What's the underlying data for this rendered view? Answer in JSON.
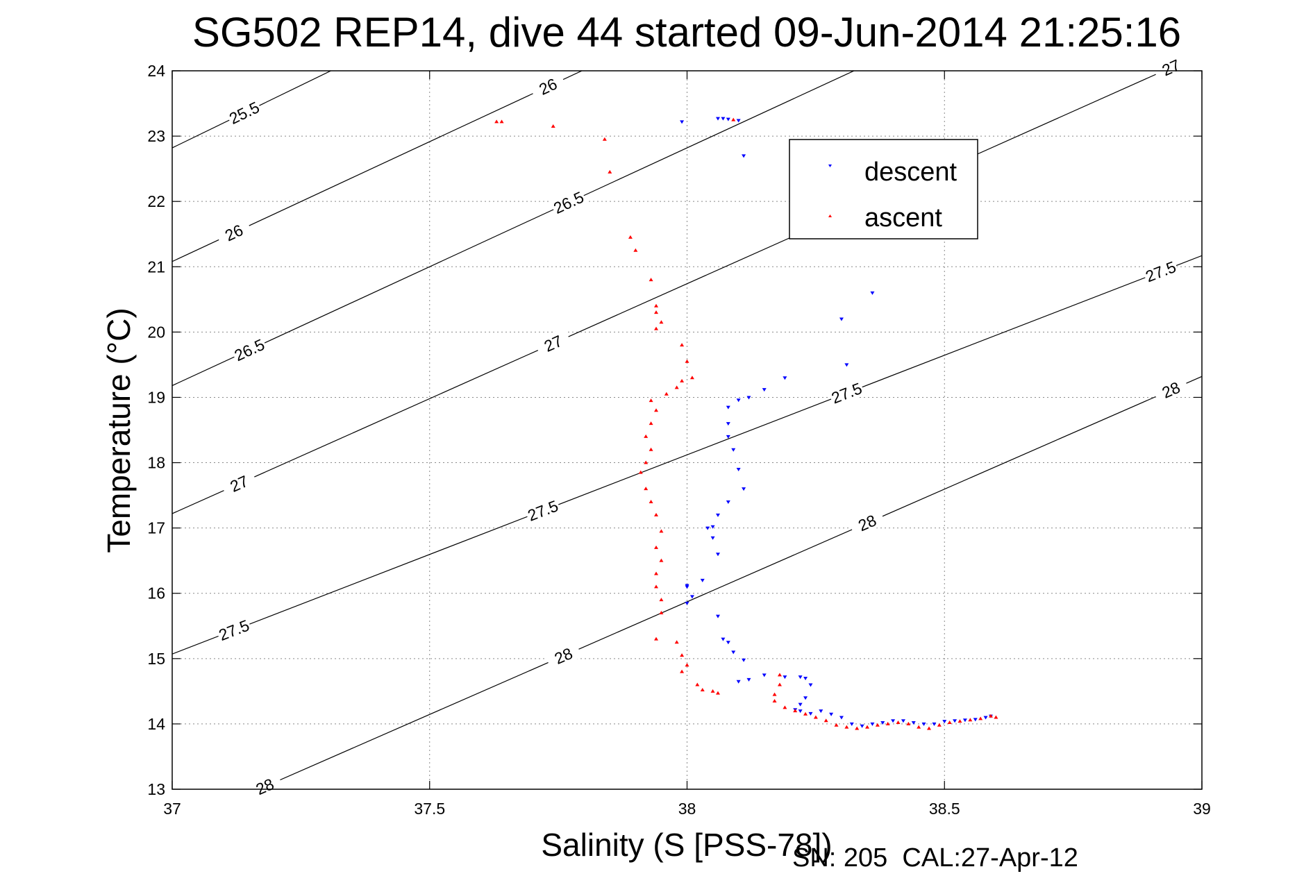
{
  "chart_data": {
    "type": "scatter",
    "title": "SG502 REP14, dive 44 started 09-Jun-2014 21:25:16",
    "xlabel": "Salinity (S [PSS-78])",
    "ylabel": "Temperature (°C)",
    "xlim": [
      37,
      39
    ],
    "ylim": [
      13,
      24
    ],
    "x_ticks": [
      37,
      37.5,
      38,
      38.5,
      39
    ],
    "x_tick_labels": [
      "37",
      "37.5",
      "38",
      "38.5",
      "39"
    ],
    "y_ticks": [
      13,
      14,
      15,
      16,
      17,
      18,
      19,
      20,
      21,
      22,
      23,
      24
    ],
    "y_tick_labels": [
      "13",
      "14",
      "15",
      "16",
      "17",
      "18",
      "19",
      "20",
      "21",
      "22",
      "23",
      "24"
    ],
    "grid": true,
    "legend_position": "top-right",
    "contours": [
      {
        "level": 25.5,
        "left_y": 22.82,
        "slope": 3.83,
        "labels": [
          {
            "text": "25.5",
            "x": 37.14
          }
        ]
      },
      {
        "level": 26,
        "left_y": 21.08,
        "slope": 3.67,
        "labels": [
          {
            "text": "26",
            "x": 37.12
          },
          {
            "text": "26",
            "x": 37.73
          }
        ]
      },
      {
        "level": 26.5,
        "left_y": 19.18,
        "slope": 3.64,
        "labels": [
          {
            "text": "26.5",
            "x": 37.15
          },
          {
            "text": "26.5",
            "x": 37.77
          }
        ]
      },
      {
        "level": 27,
        "left_y": 17.22,
        "slope": 3.52,
        "labels": [
          {
            "text": "27",
            "x": 37.13
          },
          {
            "text": "27",
            "x": 37.74
          },
          {
            "text": "27",
            "x": 38.33
          },
          {
            "text": "27",
            "x": 38.94
          }
        ]
      },
      {
        "level": 27.5,
        "left_y": 15.07,
        "slope": 3.05,
        "labels": [
          {
            "text": "27.5",
            "x": 37.12
          },
          {
            "text": "27.5",
            "x": 37.72
          },
          {
            "text": "27.5",
            "x": 38.31
          },
          {
            "text": "27.5",
            "x": 38.92
          }
        ]
      },
      {
        "level": 28,
        "left_y": 12.42,
        "slope": 3.45,
        "labels": [
          {
            "text": "28",
            "x": 37.18
          },
          {
            "text": "28",
            "x": 37.76
          },
          {
            "text": "28",
            "x": 38.35
          },
          {
            "text": "28",
            "x": 38.94
          }
        ]
      }
    ],
    "series": [
      {
        "name": "descent",
        "color": "#0000ff",
        "marker": "triangle-down",
        "points": [
          [
            37.99,
            23.22
          ],
          [
            38.06,
            23.27
          ],
          [
            38.07,
            23.27
          ],
          [
            38.08,
            23.26
          ],
          [
            38.1,
            23.24
          ],
          [
            38.11,
            22.7
          ],
          [
            38.36,
            20.6
          ],
          [
            38.3,
            20.2
          ],
          [
            38.31,
            19.5
          ],
          [
            38.19,
            19.3
          ],
          [
            38.15,
            19.12
          ],
          [
            38.12,
            19.0
          ],
          [
            38.1,
            18.96
          ],
          [
            38.08,
            18.85
          ],
          [
            38.08,
            18.6
          ],
          [
            38.08,
            18.4
          ],
          [
            38.09,
            18.2
          ],
          [
            38.1,
            17.9
          ],
          [
            38.11,
            17.6
          ],
          [
            38.08,
            17.4
          ],
          [
            38.06,
            17.2
          ],
          [
            38.05,
            17.02
          ],
          [
            38.04,
            17.0
          ],
          [
            38.05,
            16.85
          ],
          [
            38.06,
            16.6
          ],
          [
            38.03,
            16.2
          ],
          [
            38.0,
            16.1
          ],
          [
            38.0,
            16.12
          ],
          [
            38.01,
            15.95
          ],
          [
            38.0,
            15.85
          ],
          [
            38.06,
            15.65
          ],
          [
            38.07,
            15.3
          ],
          [
            38.08,
            15.25
          ],
          [
            38.09,
            15.1
          ],
          [
            38.11,
            14.98
          ],
          [
            38.1,
            14.65
          ],
          [
            38.12,
            14.68
          ],
          [
            38.15,
            14.75
          ],
          [
            38.19,
            14.72
          ],
          [
            38.22,
            14.72
          ],
          [
            38.23,
            14.7
          ],
          [
            38.24,
            14.6
          ],
          [
            38.23,
            14.4
          ],
          [
            38.22,
            14.3
          ],
          [
            38.21,
            14.22
          ],
          [
            38.22,
            14.2
          ],
          [
            38.24,
            14.16
          ],
          [
            38.26,
            14.2
          ],
          [
            38.28,
            14.15
          ],
          [
            38.3,
            14.1
          ],
          [
            38.32,
            14.0
          ],
          [
            38.34,
            13.97
          ],
          [
            38.36,
            14.0
          ],
          [
            38.38,
            14.02
          ],
          [
            38.4,
            14.05
          ],
          [
            38.42,
            14.05
          ],
          [
            38.44,
            14.02
          ],
          [
            38.46,
            14.0
          ],
          [
            38.48,
            14.0
          ],
          [
            38.5,
            14.04
          ],
          [
            38.52,
            14.05
          ],
          [
            38.54,
            14.06
          ],
          [
            38.56,
            14.07
          ],
          [
            38.58,
            14.1
          ],
          [
            38.59,
            14.12
          ]
        ]
      },
      {
        "name": "ascent",
        "color": "#ff0000",
        "marker": "triangle-up",
        "points": [
          [
            37.63,
            23.22
          ],
          [
            37.64,
            23.22
          ],
          [
            37.74,
            23.15
          ],
          [
            38.09,
            23.25
          ],
          [
            37.84,
            22.95
          ],
          [
            37.85,
            22.45
          ],
          [
            37.89,
            21.45
          ],
          [
            37.9,
            21.25
          ],
          [
            37.93,
            20.8
          ],
          [
            37.94,
            20.4
          ],
          [
            37.94,
            20.3
          ],
          [
            37.95,
            20.15
          ],
          [
            37.94,
            20.05
          ],
          [
            37.99,
            19.8
          ],
          [
            38.0,
            19.55
          ],
          [
            38.01,
            19.3
          ],
          [
            37.99,
            19.25
          ],
          [
            37.98,
            19.15
          ],
          [
            37.96,
            19.05
          ],
          [
            37.93,
            18.95
          ],
          [
            37.94,
            18.8
          ],
          [
            37.93,
            18.6
          ],
          [
            37.92,
            18.4
          ],
          [
            37.93,
            18.2
          ],
          [
            37.92,
            18.0
          ],
          [
            37.91,
            17.85
          ],
          [
            37.92,
            17.6
          ],
          [
            37.93,
            17.4
          ],
          [
            37.94,
            17.2
          ],
          [
            37.95,
            16.95
          ],
          [
            37.94,
            16.7
          ],
          [
            37.95,
            16.5
          ],
          [
            37.94,
            16.3
          ],
          [
            37.94,
            16.1
          ],
          [
            37.95,
            15.9
          ],
          [
            37.95,
            15.7
          ],
          [
            37.94,
            15.3
          ],
          [
            37.98,
            15.25
          ],
          [
            37.99,
            15.05
          ],
          [
            38.0,
            14.9
          ],
          [
            37.99,
            14.8
          ],
          [
            38.02,
            14.6
          ],
          [
            38.03,
            14.52
          ],
          [
            38.05,
            14.5
          ],
          [
            38.06,
            14.47
          ],
          [
            38.18,
            14.75
          ],
          [
            38.18,
            14.6
          ],
          [
            38.17,
            14.45
          ],
          [
            38.17,
            14.35
          ],
          [
            38.19,
            14.25
          ],
          [
            38.21,
            14.2
          ],
          [
            38.23,
            14.15
          ],
          [
            38.25,
            14.1
          ],
          [
            38.27,
            14.05
          ],
          [
            38.29,
            13.98
          ],
          [
            38.31,
            13.95
          ],
          [
            38.33,
            13.93
          ],
          [
            38.35,
            13.95
          ],
          [
            38.37,
            13.98
          ],
          [
            38.39,
            14.0
          ],
          [
            38.41,
            14.02
          ],
          [
            38.43,
            14.0
          ],
          [
            38.45,
            13.95
          ],
          [
            38.47,
            13.93
          ],
          [
            38.49,
            13.98
          ],
          [
            38.51,
            14.02
          ],
          [
            38.53,
            14.04
          ],
          [
            38.55,
            14.06
          ],
          [
            38.57,
            14.08
          ],
          [
            38.59,
            14.12
          ],
          [
            38.6,
            14.1
          ]
        ]
      }
    ]
  },
  "footer": {
    "text": "SN: 205  CAL:27-Apr-12"
  }
}
